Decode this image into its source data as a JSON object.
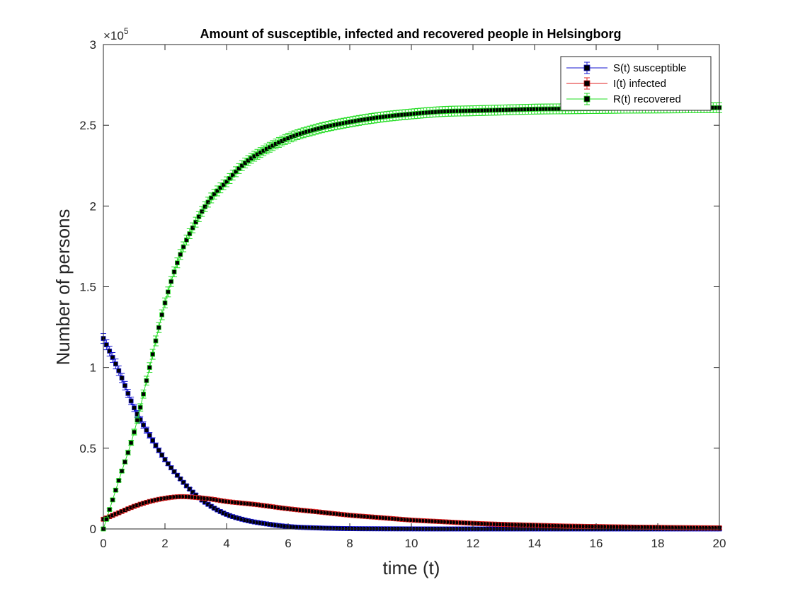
{
  "chart_data": {
    "type": "line",
    "title": "Amount of susceptible, infected and recovered people in Helsingborg",
    "xlabel": "time (t)",
    "ylabel": "Number of persons",
    "y_exponent_label": "×10",
    "y_exponent": "5",
    "xlim": [
      0,
      20
    ],
    "ylim": [
      0,
      300000
    ],
    "x_ticks": [
      0,
      2,
      4,
      6,
      8,
      10,
      12,
      14,
      16,
      18,
      20
    ],
    "x_tick_labels": [
      "0",
      "2",
      "4",
      "6",
      "8",
      "10",
      "12",
      "14",
      "16",
      "18",
      "20"
    ],
    "y_ticks": [
      0,
      50000,
      100000,
      150000,
      200000,
      250000,
      300000
    ],
    "y_tick_labels": [
      "0",
      "0.5",
      "1",
      "1.5",
      "2",
      "2.5",
      "3"
    ],
    "grid": false,
    "legend_position": "top-right",
    "marker": "square",
    "error_bars": true,
    "x_samples": [
      0,
      0.5,
      1,
      1.5,
      2,
      2.5,
      3,
      3.5,
      4,
      4.5,
      5,
      6,
      7,
      8,
      9,
      10,
      11,
      12,
      13,
      14,
      15,
      16,
      17,
      18,
      19,
      20
    ],
    "series": [
      {
        "name": "S(t) susceptible",
        "color": "#1515d0",
        "values": [
          118000,
          98000,
          75000,
          58000,
          43000,
          31000,
          21000,
          14000,
          9000,
          6000,
          4000,
          1500,
          600,
          200,
          100,
          50,
          0,
          0,
          0,
          0,
          0,
          0,
          0,
          0,
          0,
          0
        ]
      },
      {
        "name": "I(t) infected",
        "color": "#e02020",
        "values": [
          6000,
          10000,
          14000,
          17000,
          19000,
          20000,
          19500,
          18500,
          17000,
          16000,
          15000,
          12500,
          10500,
          8500,
          7000,
          5500,
          4500,
          3500,
          2800,
          2300,
          1800,
          1500,
          1200,
          1000,
          800,
          700
        ]
      },
      {
        "name": "R(t) recovered",
        "color": "#22dd22",
        "values": [
          0,
          30000,
          60000,
          100000,
          140000,
          170000,
          190000,
          205000,
          215000,
          225000,
          232000,
          242000,
          248000,
          252000,
          255000,
          257000,
          258500,
          259000,
          259500,
          260000,
          260200,
          260400,
          260600,
          260700,
          260800,
          260900
        ]
      }
    ]
  }
}
